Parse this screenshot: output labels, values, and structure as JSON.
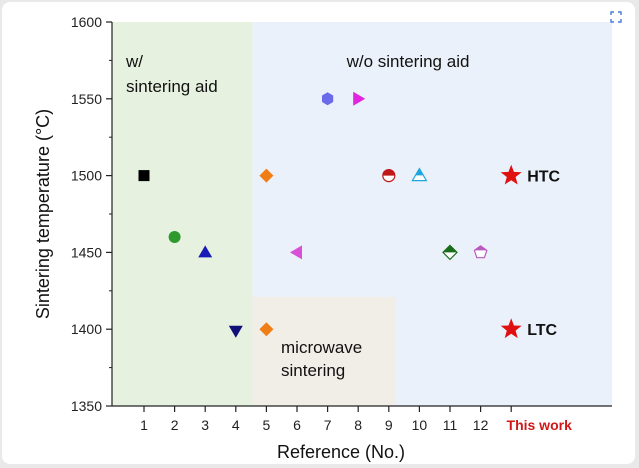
{
  "chart_data": {
    "type": "scatter",
    "xlabel": "Reference (No.)",
    "ylabel": "Sintering temperature (°C)",
    "ylim": [
      1350,
      1600
    ],
    "xlim": [
      0,
      15
    ],
    "y_ticks": [
      "1350",
      "1400",
      "1450",
      "1500",
      "1550",
      "1600"
    ],
    "x_ticks": [
      {
        "x": 1,
        "label": "1"
      },
      {
        "x": 2,
        "label": "2"
      },
      {
        "x": 3,
        "label": "3"
      },
      {
        "x": 4,
        "label": "4"
      },
      {
        "x": 5,
        "label": "5"
      },
      {
        "x": 6,
        "label": "6"
      },
      {
        "x": 7,
        "label": "7"
      },
      {
        "x": 8,
        "label": "8"
      },
      {
        "x": 9,
        "label": "9"
      },
      {
        "x": 10,
        "label": "10"
      },
      {
        "x": 11,
        "label": "11"
      },
      {
        "x": 12,
        "label": "12"
      },
      {
        "x": 13,
        "label": "This work"
      }
    ],
    "regions": [
      {
        "name": "with-sintering-aid-region",
        "x_range": [
          0,
          4.55
        ],
        "y_range": [
          1350,
          1600
        ],
        "color": "#e6f2df",
        "label_lines": [
          "w/",
          "sintering aid"
        ]
      },
      {
        "name": "without-sintering-aid-region",
        "x_range": [
          4.55,
          15
        ],
        "y_range": [
          1350,
          1600
        ],
        "color": "#ebf1fa",
        "label_lines": [
          "w/o sintering aid"
        ]
      },
      {
        "name": "microwave-sintering-region",
        "x_range": [
          4.55,
          9.2
        ],
        "y_range": [
          1350,
          1421
        ],
        "color": "#f1ede7",
        "label_lines": [
          "microwave",
          "sintering"
        ]
      }
    ],
    "points": [
      {
        "x": 1,
        "y": 1500,
        "marker": "square",
        "color": "#000000"
      },
      {
        "x": 2,
        "y": 1460,
        "marker": "circle",
        "color": "#2e9a2e"
      },
      {
        "x": 3,
        "y": 1450,
        "marker": "triangle-up",
        "color": "#1a1ab8"
      },
      {
        "x": 4,
        "y": 1399,
        "marker": "triangle-down",
        "color": "#10107a"
      },
      {
        "x": 5,
        "y": 1500,
        "marker": "diamond",
        "color": "#f07e16"
      },
      {
        "x": 5,
        "y": 1400,
        "marker": "diamond",
        "color": "#f07e16"
      },
      {
        "x": 6,
        "y": 1450,
        "marker": "triangle-left",
        "color": "#d84fd8"
      },
      {
        "x": 7,
        "y": 1550,
        "marker": "hexagon",
        "color": "#6b6bea"
      },
      {
        "x": 8,
        "y": 1550,
        "marker": "triangle-right",
        "color": "#e024e0"
      },
      {
        "x": 9,
        "y": 1500,
        "marker": "half-circle",
        "color": "#c01818"
      },
      {
        "x": 10,
        "y": 1500,
        "marker": "half-triangle",
        "color": "#1ea6e0"
      },
      {
        "x": 11,
        "y": 1450,
        "marker": "half-diamond",
        "color": "#1a6e1a"
      },
      {
        "x": 12,
        "y": 1450,
        "marker": "half-pentagon",
        "color": "#b85ac0"
      },
      {
        "x": 13,
        "y": 1500,
        "marker": "star",
        "color": "#e01010",
        "label": "HTC"
      },
      {
        "x": 13,
        "y": 1400,
        "marker": "star",
        "color": "#e01010",
        "label": "LTC"
      }
    ],
    "highlight_color": "#d01818"
  },
  "icons": {
    "expand": "expand-icon"
  }
}
